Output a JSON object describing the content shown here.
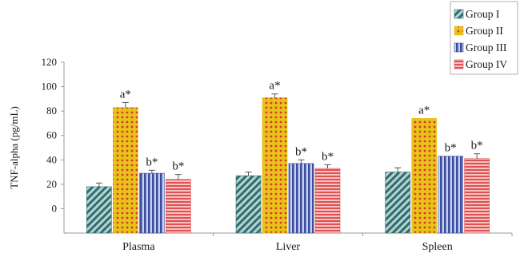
{
  "chart_data": {
    "type": "bar",
    "title": "",
    "xlabel": "",
    "ylabel": "TNF-alpha (pg/mL)",
    "ylim": [
      -20,
      120
    ],
    "yticks": [
      "120",
      "100",
      "80",
      "60",
      "40",
      "20",
      "0"
    ],
    "grid": false,
    "legend_position": "top-right",
    "categories": [
      "Plasma",
      "Liver",
      "Spleen"
    ],
    "series": [
      {
        "name": "Group I",
        "pattern": "diagonal-hatch",
        "color": "#2e6e6e",
        "values": [
          18,
          27,
          30
        ],
        "errors": [
          3,
          3,
          3.5
        ],
        "labels": [
          "",
          "",
          ""
        ]
      },
      {
        "name": "Group II",
        "pattern": "polka-dot",
        "color": "#e8c21a",
        "dot_color": "#d43a2a",
        "values": [
          83,
          91,
          74
        ],
        "errors": [
          4,
          3,
          0
        ],
        "labels": [
          "a*",
          "a*",
          "a*"
        ]
      },
      {
        "name": "Group III",
        "pattern": "vertical-stripes",
        "color": "#3a4d9e",
        "values": [
          29,
          37,
          43
        ],
        "errors": [
          2.5,
          3,
          0
        ],
        "labels": [
          "b*",
          "b*",
          "b*"
        ]
      },
      {
        "name": "Group IV",
        "pattern": "horizontal-stripes",
        "color": "#e05050",
        "values": [
          24,
          33,
          41
        ],
        "errors": [
          4,
          3,
          4
        ],
        "labels": [
          "b*",
          "b*",
          "b*"
        ]
      }
    ]
  }
}
